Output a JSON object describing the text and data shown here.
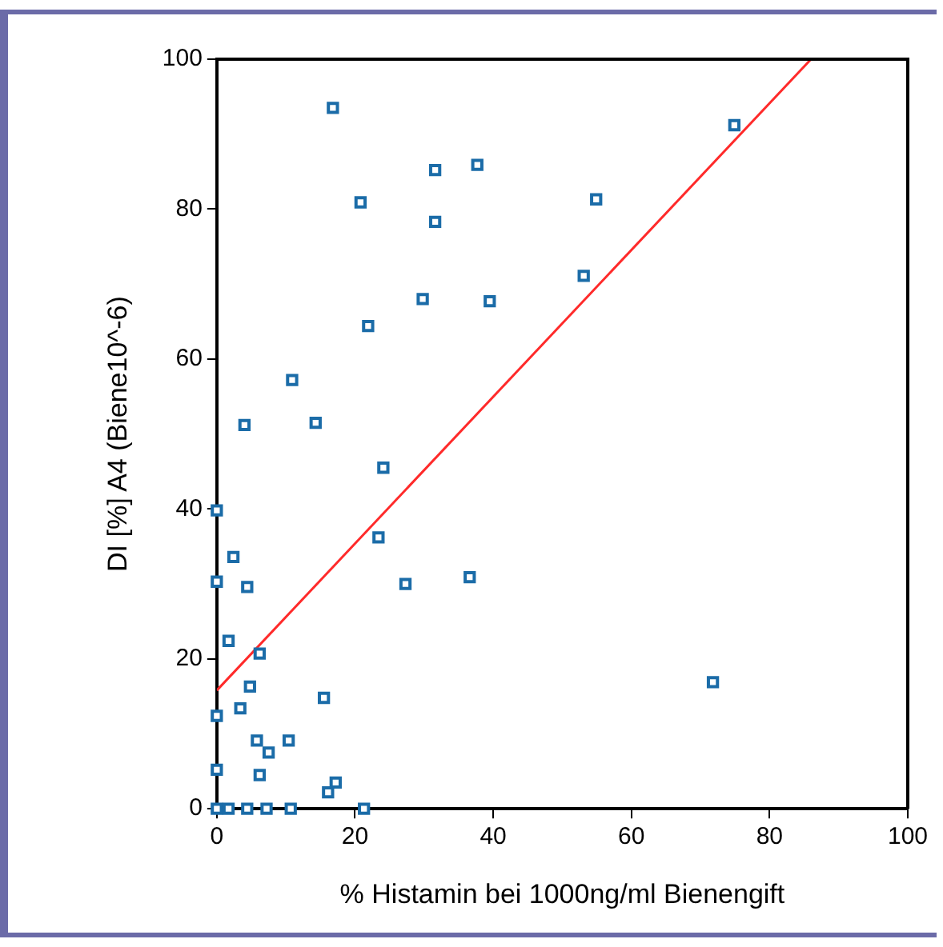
{
  "chart_data": {
    "type": "scatter",
    "xlabel": "% Histamin bei 1000ng/ml Bienengift",
    "ylabel": "DI [%] A4 (Biene10^-6)",
    "xlim": [
      0,
      100
    ],
    "ylim": [
      0,
      100
    ],
    "xticks": [
      0,
      20,
      40,
      60,
      80,
      100
    ],
    "yticks": [
      0,
      20,
      40,
      60,
      80,
      100
    ],
    "grid": false,
    "legend": false,
    "marker": "square",
    "series": [
      {
        "color": "#1b6ca8",
        "x": [
          16.8,
          31.6,
          37.7,
          20.8,
          31.6,
          29.8,
          39.5,
          21.9,
          10.9,
          4.0,
          14.3,
          74.9,
          54.9,
          53.1,
          71.8,
          0,
          0,
          24.1,
          23.4,
          2.4,
          4.4,
          27.3,
          36.6,
          1.7,
          6.2,
          4.8,
          15.5,
          0,
          3.4,
          5.8,
          10.4,
          7.5,
          0,
          6.2,
          17.2,
          16.1,
          0,
          1.7,
          4.4,
          7.2,
          10.7,
          21.3
        ],
        "values": [
          93.5,
          85.2,
          85.9,
          80.9,
          78.3,
          68.0,
          67.7,
          64.4,
          57.2,
          51.2,
          51.5,
          91.2,
          81.3,
          71.1,
          16.9,
          39.8,
          30.3,
          45.5,
          36.2,
          33.6,
          29.6,
          30.0,
          30.9,
          22.4,
          20.7,
          16.3,
          14.8,
          12.4,
          13.4,
          9.1,
          9.1,
          7.5,
          5.2,
          4.5,
          3.5,
          2.2,
          0,
          0,
          0,
          0,
          0,
          0
        ]
      },
      {
        "type": "line",
        "color": "#ff2a2a",
        "x": [
          0,
          86
        ],
        "values": [
          15.8,
          100
        ],
        "marker": "none"
      }
    ]
  }
}
